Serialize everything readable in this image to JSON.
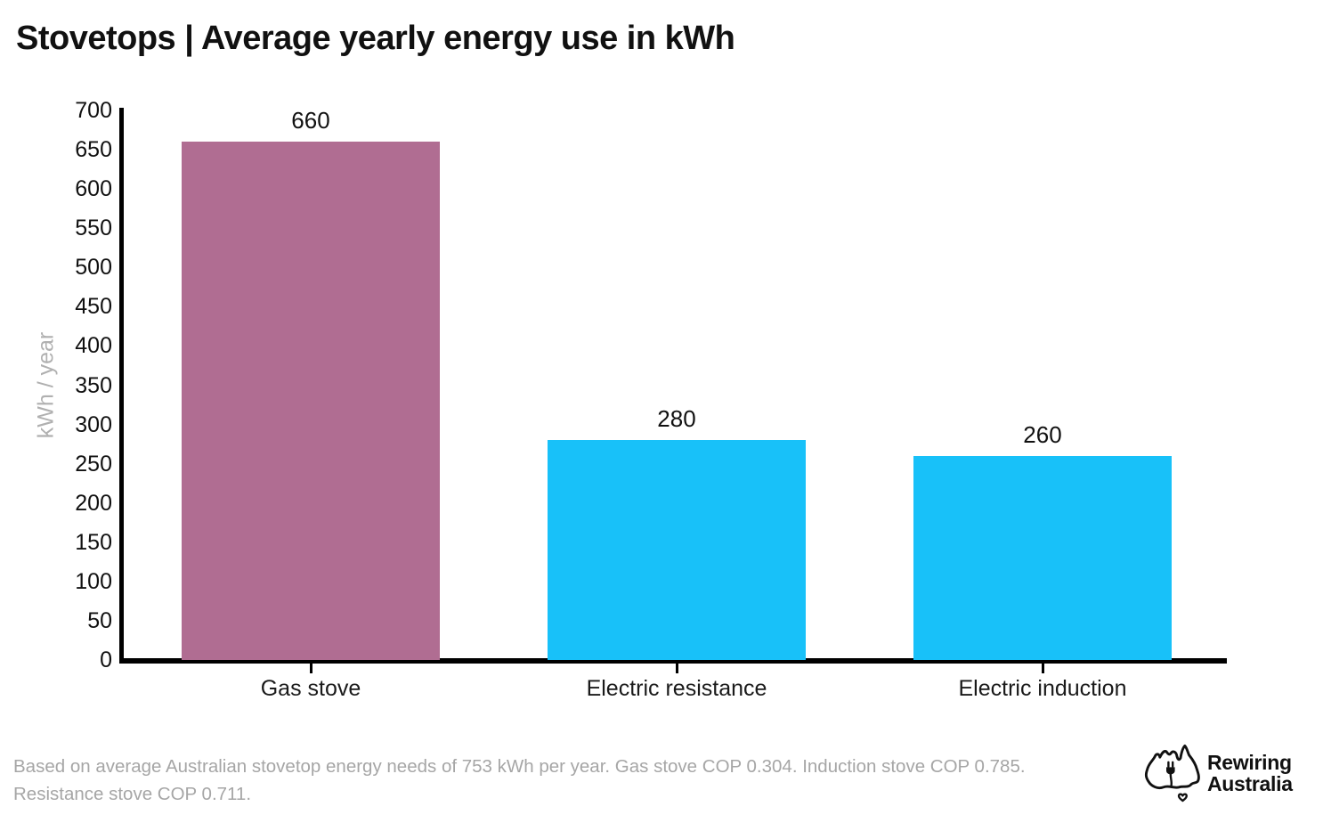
{
  "page": {
    "title": "Stovetops | Average yearly energy use in kWh"
  },
  "chart_data": {
    "type": "bar",
    "title": "Stovetops | Average yearly energy use in kWh",
    "categories": [
      "Gas stove",
      "Electric resistance",
      "Electric induction"
    ],
    "values": [
      660,
      280,
      260
    ],
    "data_labels": [
      "660",
      "280",
      "260"
    ],
    "bar_colors": [
      "#b06d92",
      "#18c1f9",
      "#18c1f9"
    ],
    "xlabel": "",
    "ylabel": "kWh / year",
    "ylim": [
      0,
      700
    ],
    "yticks": [
      0,
      50,
      100,
      150,
      200,
      250,
      300,
      350,
      400,
      450,
      500,
      550,
      600,
      650,
      700
    ],
    "grid": false,
    "legend_position": "none",
    "axis_color": "#000000",
    "tick_label_color": "#111111",
    "ylabel_color": "#b0b0b0"
  },
  "footnote": {
    "lines": [
      "Based on average Australian stovetop energy needs of 753 kWh per year. Gas stove COP 0.304. Induction stove COP 0.785.",
      "Resistance stove COP 0.711."
    ]
  },
  "logo": {
    "name": "Rewiring Australia",
    "line1": "Rewiring",
    "line2": "Australia",
    "icon": "australia-map-plug-icon"
  }
}
